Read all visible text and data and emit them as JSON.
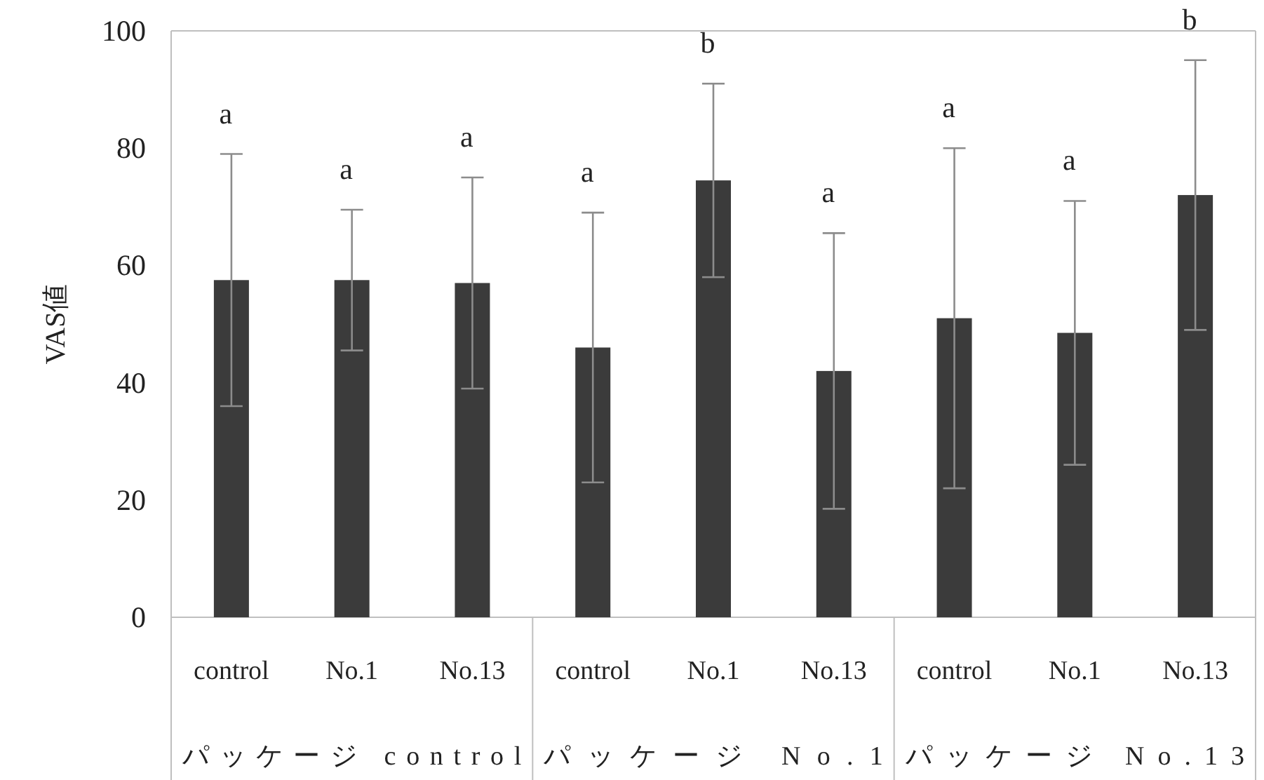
{
  "chart_data": {
    "type": "bar",
    "ylabel": "VAS値",
    "categories": [
      "control",
      "No.1",
      "No.13",
      "control",
      "No.1",
      "No.13",
      "control",
      "No.1",
      "No.13"
    ],
    "values": [
      57.5,
      57.5,
      57,
      46,
      74.5,
      42,
      51,
      48.5,
      72
    ],
    "errors": [
      21.5,
      12,
      18,
      23,
      16.5,
      23.5,
      29,
      22.5,
      23
    ],
    "color": "#3b3b3b",
    "ylim": [
      0,
      100
    ],
    "yticks": [
      0,
      20,
      40,
      60,
      80,
      100
    ],
    "annotations": [
      "a",
      "a",
      "a",
      "a",
      "b",
      "a",
      "a",
      "a",
      "b",
      "パッケージ control",
      "パッケージ No.1",
      "パッケージ No.13"
    ]
  }
}
